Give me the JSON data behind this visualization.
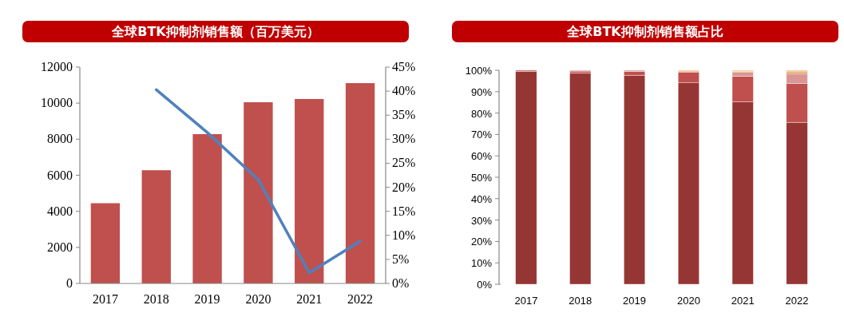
{
  "chart_data": [
    {
      "type": "bar",
      "title": "全球BTK抑制剂销售额（百万美元）",
      "categories": [
        "2017",
        "2018",
        "2019",
        "2020",
        "2021",
        "2022"
      ],
      "series": [
        {
          "color": "#c0504d",
          "values": [
            4450,
            6280,
            8280,
            10050,
            10230,
            11110
          ]
        },
        {
          "type": "line",
          "axis": "y2",
          "color": "#4f81bd",
          "values": [
            null,
            40.3,
            31.4,
            21.6,
            2.2,
            8.8
          ]
        }
      ],
      "ylim": [
        0,
        12000
      ],
      "yticks": [
        0,
        2000,
        4000,
        6000,
        8000,
        10000,
        12000
      ],
      "y2lim": [
        0,
        45
      ],
      "y2ticks": [
        {
          "value": 0,
          "label": "0%"
        },
        {
          "value": 5,
          "label": "5%"
        },
        {
          "value": 10,
          "label": "10%"
        },
        {
          "value": 15,
          "label": "15%"
        },
        {
          "value": 20,
          "label": "20%"
        },
        {
          "value": 25,
          "label": "25%"
        },
        {
          "value": 30,
          "label": "30%"
        },
        {
          "value": 35,
          "label": "35%"
        },
        {
          "value": 40,
          "label": "40%"
        },
        {
          "value": 45,
          "label": "45%"
        }
      ]
    },
    {
      "type": "bar",
      "stacked": true,
      "title": "全球BTK抑制剂销售额占比",
      "categories": [
        "2017",
        "2018",
        "2019",
        "2020",
        "2021",
        "2022"
      ],
      "series": [
        {
          "color": "#963634",
          "values": [
            99.5,
            98.8,
            97.7,
            94.1,
            85.2,
            75.7
          ]
        },
        {
          "color": "#c0504d",
          "values": [
            0.5,
            0.8,
            1.7,
            5.1,
            12.0,
            18.2
          ]
        },
        {
          "color": "#d99694",
          "values": [
            0,
            0.4,
            0.6,
            0,
            1.8,
            4.5
          ]
        },
        {
          "color": "#d0903c",
          "values": [
            0,
            0,
            0,
            0,
            0.5,
            0.8
          ]
        },
        {
          "color": "#fac090",
          "values": [
            0,
            0,
            0,
            0.8,
            0.5,
            0.8
          ]
        }
      ],
      "ylim": [
        0,
        100
      ],
      "yticks": [
        {
          "value": 0,
          "label": "0%"
        },
        {
          "value": 10,
          "label": "10%"
        },
        {
          "value": 20,
          "label": "20%"
        },
        {
          "value": 30,
          "label": "30%"
        },
        {
          "value": 40,
          "label": "40%"
        },
        {
          "value": 50,
          "label": "50%"
        },
        {
          "value": 60,
          "label": "60%"
        },
        {
          "value": 70,
          "label": "70%"
        },
        {
          "value": 80,
          "label": "80%"
        },
        {
          "value": 90,
          "label": "90%"
        },
        {
          "value": 100,
          "label": "100%"
        }
      ]
    }
  ]
}
